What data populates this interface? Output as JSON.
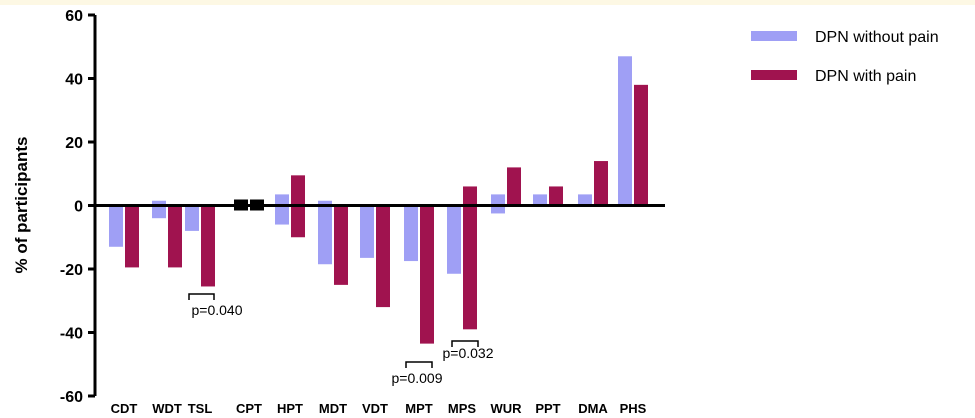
{
  "chart_data": {
    "type": "bar",
    "ylabel": "% of participants",
    "xlabel": "",
    "ylim": [
      -60,
      60
    ],
    "yticks": [
      60,
      40,
      20,
      0,
      -20,
      -40,
      -60
    ],
    "legend_position": "top-right",
    "categories": [
      "CDT",
      "WDT",
      "TSL",
      "CPT",
      "HPT",
      "MDT",
      "VDT",
      "MPT",
      "MPS",
      "WUR",
      "PPT",
      "DMA",
      "PHS"
    ],
    "series": [
      {
        "name": "DPN without pain",
        "color": "#9f9ff5",
        "gain": [
          0,
          1.5,
          0,
          0.5,
          3.5,
          1.5,
          0,
          0,
          0,
          3.5,
          3.5,
          3.5,
          47
        ],
        "loss": [
          -13,
          -4,
          -8,
          0,
          -6,
          -18.5,
          -16.5,
          -17.5,
          -21.5,
          -2.5,
          0,
          0,
          0
        ]
      },
      {
        "name": "DPN with pain",
        "color": "#a0134f",
        "gain": [
          0,
          0,
          0,
          0.5,
          9.5,
          0,
          0,
          0,
          6,
          12,
          6,
          14,
          38
        ],
        "loss": [
          -19.5,
          -19.5,
          -25.5,
          0,
          -10,
          -25,
          -32,
          -43.5,
          -39,
          0,
          0,
          0,
          0
        ]
      }
    ],
    "annotations": [
      {
        "text": "p=0.040",
        "category": "TSL"
      },
      {
        "text": "p=0.009",
        "category": "MPT"
      },
      {
        "text": "p=0.032",
        "category": "MPS"
      }
    ]
  }
}
